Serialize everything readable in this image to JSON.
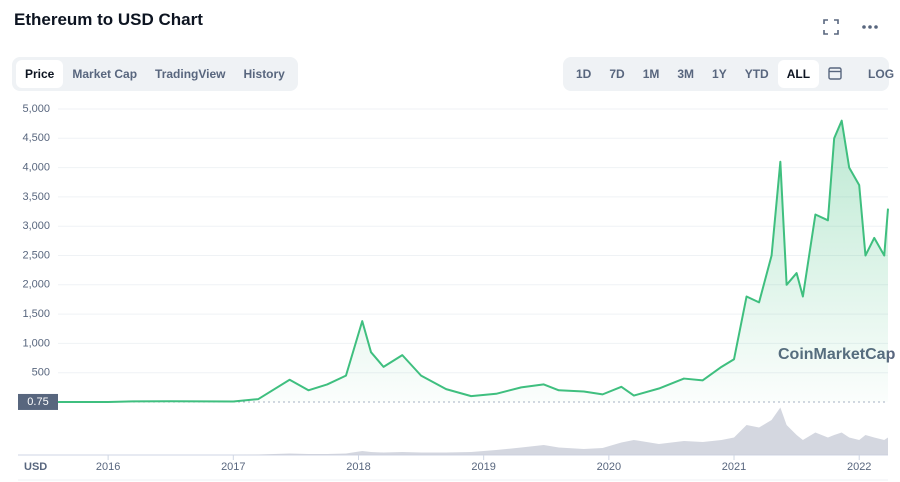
{
  "ui": {
    "tabs": [
      "Price",
      "Market Cap",
      "TradingView",
      "History"
    ],
    "active_tab": 0,
    "ranges": [
      "1D",
      "7D",
      "1M",
      "3M",
      "1Y",
      "YTD",
      "ALL"
    ],
    "active_range": 6,
    "log_button": "LOG",
    "watermark": "CoinMarketCap"
  },
  "chart_data": {
    "type": "line",
    "title": "Ethereum to USD Chart",
    "currency": "USD",
    "baseline": 0.75,
    "x": [
      2015.6,
      2016.0,
      2016.2,
      2016.5,
      2017.0,
      2017.2,
      2017.45,
      2017.6,
      2017.75,
      2017.9,
      2018.03,
      2018.1,
      2018.2,
      2018.35,
      2018.5,
      2018.7,
      2018.9,
      2019.1,
      2019.3,
      2019.48,
      2019.6,
      2019.8,
      2019.95,
      2020.1,
      2020.2,
      2020.4,
      2020.6,
      2020.75,
      2020.9,
      2021.0,
      2021.1,
      2021.2,
      2021.3,
      2021.37,
      2021.42,
      2021.5,
      2021.55,
      2021.65,
      2021.75,
      2021.8,
      2021.86,
      2021.92,
      2022.0,
      2022.05,
      2022.12,
      2022.2,
      2022.23
    ],
    "series": [
      {
        "color": "#3fbf7f",
        "values": [
          0.75,
          1,
          10,
          12,
          8,
          50,
          380,
          200,
          300,
          450,
          1380,
          850,
          600,
          800,
          450,
          220,
          100,
          140,
          250,
          300,
          200,
          180,
          130,
          260,
          110,
          230,
          400,
          370,
          600,
          730,
          1800,
          1700,
          2500,
          4100,
          2000,
          2200,
          1800,
          3200,
          3100,
          4500,
          4800,
          4000,
          3700,
          2500,
          2800,
          2500,
          3300
        ]
      }
    ],
    "volume": {
      "color": "#c9cdd8",
      "values": [
        0,
        0,
        0,
        0,
        0,
        1,
        3,
        2,
        2,
        3,
        8,
        6,
        5,
        6,
        5,
        5,
        6,
        10,
        15,
        20,
        15,
        12,
        14,
        25,
        30,
        22,
        28,
        26,
        30,
        35,
        60,
        55,
        70,
        95,
        60,
        40,
        30,
        45,
        35,
        40,
        45,
        35,
        30,
        40,
        35,
        30,
        35
      ]
    },
    "volume_lim": [
      0,
      100
    ],
    "xlim": [
      2015.28,
      2022.23
    ],
    "xticks": [
      2016,
      2017,
      2018,
      2019,
      2020,
      2021,
      2022
    ],
    "ylim": [
      0,
      5000
    ],
    "yticks": [
      500,
      {
        "value": 1000,
        "label": "1,000"
      },
      {
        "value": 1500,
        "label": "1,500"
      },
      {
        "value": 2000,
        "label": "2,000"
      },
      {
        "value": 2500,
        "label": "2,500"
      },
      {
        "value": 3000,
        "label": "3,000"
      },
      {
        "value": 3500,
        "label": "3,500"
      },
      {
        "value": 4000,
        "label": "4,000"
      },
      {
        "value": 4500,
        "label": "4,500"
      },
      {
        "value": 5000,
        "label": "5,000"
      }
    ],
    "grid": true
  }
}
